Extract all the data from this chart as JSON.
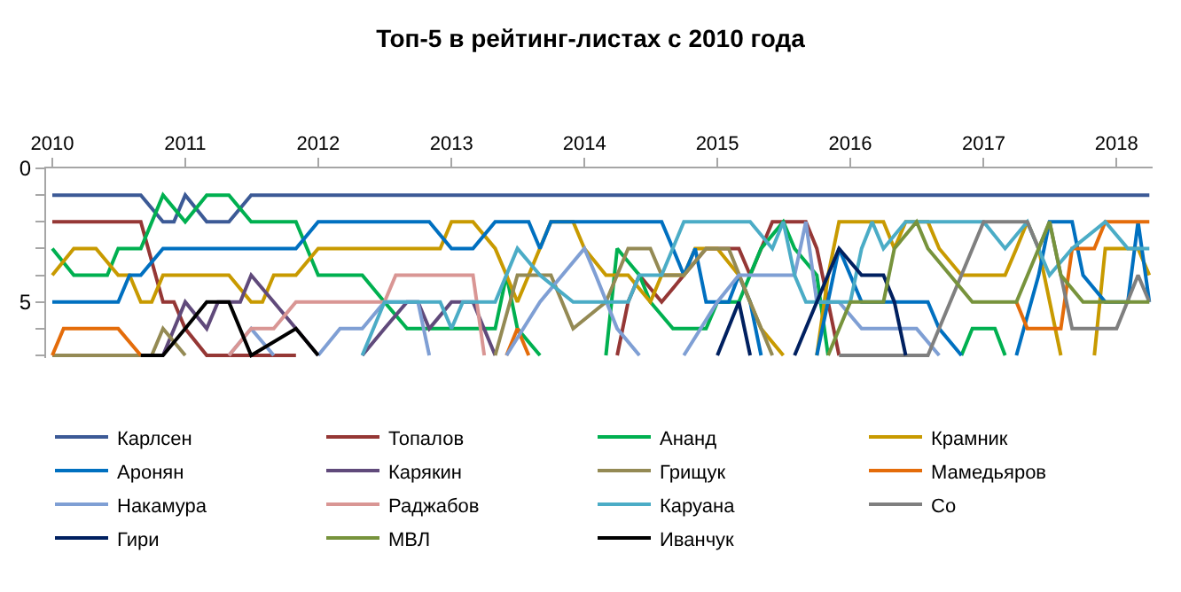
{
  "chart_data": {
    "type": "line",
    "title": "Топ-5 в рейтинг-листах с 2010 года",
    "xlim": [
      "2009-12-15",
      "2018-04-10"
    ],
    "xticks": [
      "2010",
      "2011",
      "2012",
      "2013",
      "2014",
      "2015",
      "2016",
      "2017",
      "2018"
    ],
    "ylim": [
      7.1,
      0
    ],
    "yticks": [
      0,
      {
        "value": 1,
        "label": null
      },
      {
        "value": 2,
        "label": null
      },
      {
        "value": 3,
        "label": null
      },
      {
        "value": 4,
        "label": null
      },
      5,
      {
        "value": 6,
        "label": null
      },
      {
        "value": 7,
        "label": null
      }
    ],
    "legend": "bottom",
    "line_style": "solid",
    "series": [
      {
        "name": "Карлсен",
        "color": "#3c5a96",
        "x": [
          "2010-01",
          "2010-09",
          "2010-11",
          "2010-12",
          "2011-01",
          "2011-03",
          "2011-05",
          "2011-07",
          "2018-04"
        ],
        "values": [
          1,
          1,
          2,
          2,
          1,
          2,
          2,
          1,
          1
        ]
      },
      {
        "name": "Топалов",
        "color": "#953735",
        "x": [
          "2010-01",
          "2010-09",
          "2010-11",
          "2010-12",
          "2011-01",
          "2011-03",
          "2011-11",
          "2012-01",
          "2014-04",
          "2014-05",
          "2014-06",
          "2014-08",
          "2014-10",
          "2014-12",
          "2015-03",
          "2015-04",
          "2015-06",
          "2015-09",
          "2015-10",
          "2015-11",
          "2015-12"
        ],
        "values": [
          2,
          2,
          5,
          5,
          6,
          7,
          7,
          null,
          7,
          5,
          4,
          5,
          4,
          3,
          3,
          4,
          2,
          2,
          3,
          5,
          7
        ]
      },
      {
        "name": "Ананд",
        "color": "#00b050",
        "x": [
          "2010-01",
          "2010-03",
          "2010-06",
          "2010-07",
          "2010-09",
          "2010-11",
          "2011-01",
          "2011-03",
          "2011-05",
          "2011-07",
          "2011-11",
          "2012-01",
          "2012-05",
          "2012-07",
          "2012-09",
          "2013-05",
          "2013-06",
          "2013-07",
          "2013-09",
          "2014-01",
          "2014-03",
          "2014-04",
          "2014-06",
          "2014-07",
          "2014-09",
          "2014-12",
          "2015-01",
          "2015-03",
          "2015-05",
          "2015-07",
          "2015-08",
          "2015-10",
          "2015-11",
          "2016-06",
          "2016-11",
          "2016-12",
          "2017-02",
          "2017-03"
        ],
        "values": [
          3,
          4,
          4,
          3,
          3,
          1,
          2,
          1,
          1,
          2,
          2,
          4,
          4,
          5,
          6,
          6,
          4,
          6,
          7,
          null,
          7,
          3,
          4,
          5,
          6,
          6,
          5,
          5,
          3,
          2,
          3,
          4,
          7,
          null,
          7,
          6,
          6,
          7
        ]
      },
      {
        "name": "Крамник",
        "color": "#c89a00",
        "x": [
          "2010-01",
          "2010-03",
          "2010-05",
          "2010-07",
          "2010-08",
          "2010-09",
          "2010-10",
          "2010-11",
          "2011-05",
          "2011-07",
          "2011-08",
          "2011-09",
          "2011-11",
          "2012-01",
          "2012-12",
          "2013-01",
          "2013-03",
          "2013-05",
          "2013-06",
          "2013-07",
          "2013-08",
          "2013-10",
          "2013-12",
          "2014-01",
          "2014-03",
          "2014-05",
          "2014-07",
          "2014-08",
          "2014-10",
          "2014-11",
          "2015-01",
          "2015-03",
          "2015-05",
          "2015-07",
          "2015-09",
          "2015-10",
          "2015-11",
          "2015-12",
          "2016-04",
          "2016-05",
          "2016-06",
          "2016-08",
          "2016-09",
          "2016-11",
          "2017-03",
          "2017-04",
          "2017-05",
          "2017-06",
          "2017-08",
          "2017-10",
          "2017-11",
          "2017-12",
          "2018-03",
          "2018-04"
        ],
        "values": [
          4,
          3,
          3,
          4,
          4,
          5,
          5,
          4,
          4,
          5,
          5,
          4,
          4,
          3,
          3,
          2,
          2,
          3,
          4,
          5,
          4,
          2,
          2,
          3,
          4,
          4,
          5,
          4,
          4,
          3,
          3,
          4,
          6,
          7,
          null,
          7,
          4,
          2,
          2,
          3,
          2,
          2,
          3,
          4,
          4,
          3,
          2,
          3,
          7,
          null,
          7,
          3,
          3,
          4
        ]
      },
      {
        "name": "Аронян",
        "color": "#0070c0",
        "x": [
          "2010-01",
          "2010-07",
          "2010-08",
          "2010-09",
          "2010-11",
          "2011-11",
          "2012-01",
          "2012-11",
          "2013-01",
          "2013-03",
          "2013-05",
          "2013-08",
          "2013-09",
          "2013-10",
          "2014-08",
          "2014-09",
          "2014-10",
          "2014-11",
          "2014-12",
          "2015-02",
          "2015-03",
          "2015-04",
          "2015-05",
          "2015-09",
          "2015-10",
          "2015-12",
          "2016-02",
          "2016-08",
          "2016-09",
          "2016-11",
          "2017-03",
          "2017-04",
          "2017-06",
          "2017-07",
          "2017-09",
          "2017-10",
          "2017-12",
          "2018-02",
          "2018-03",
          "2018-04"
        ],
        "values": [
          5,
          5,
          4,
          4,
          3,
          3,
          2,
          2,
          3,
          3,
          2,
          2,
          3,
          2,
          2,
          3,
          4,
          3,
          5,
          5,
          4,
          5,
          7,
          null,
          7,
          3,
          5,
          5,
          6,
          7,
          null,
          7,
          4,
          2,
          2,
          4,
          5,
          5,
          2,
          5
        ]
      },
      {
        "name": "Карякин",
        "color": "#604a7b",
        "x": [
          "2010-11",
          "2011-01",
          "2011-03",
          "2011-04",
          "2011-06",
          "2011-07",
          "2011-09",
          "2011-11",
          "2012-01",
          "2012-03",
          "2012-05",
          "2012-07",
          "2012-09",
          "2012-10",
          "2012-11",
          "2013-01",
          "2013-03",
          "2013-05"
        ],
        "values": [
          7,
          5,
          6,
          5,
          5,
          4,
          5,
          6,
          7,
          null,
          7,
          6,
          5,
          5,
          6,
          5,
          5,
          7
        ]
      },
      {
        "name": "Грищук",
        "color": "#948a54",
        "x": [
          "2010-01",
          "2010-02",
          "2010-10",
          "2010-11",
          "2011-01",
          "2012-01",
          "2013-05",
          "2013-07",
          "2013-10",
          "2013-12",
          "2014-03",
          "2014-05",
          "2014-07",
          "2014-08",
          "2014-10",
          "2014-12",
          "2015-02",
          "2015-04",
          "2015-06"
        ],
        "values": [
          7,
          7,
          7,
          6,
          7,
          null,
          7,
          4,
          4,
          6,
          5,
          3,
          3,
          4,
          4,
          3,
          3,
          5,
          7
        ]
      },
      {
        "name": "Мамедьяров",
        "color": "#e46c0a",
        "x": [
          "2010-01",
          "2010-02",
          "2010-07",
          "2010-09",
          "2011-01",
          "2013-06",
          "2013-07",
          "2013-08",
          "2014-01",
          "2017-04",
          "2017-05",
          "2017-08",
          "2017-09",
          "2017-11",
          "2017-12",
          "2018-04"
        ],
        "values": [
          7,
          6,
          6,
          7,
          null,
          7,
          6,
          7,
          null,
          5,
          6,
          6,
          3,
          3,
          2,
          2
        ]
      },
      {
        "name": "Накамура",
        "color": "#7f9fd4",
        "x": [
          "2011-05",
          "2011-07",
          "2011-09",
          "2011-11",
          "2012-01",
          "2012-03",
          "2012-05",
          "2012-07",
          "2012-10",
          "2012-11",
          "2013-01",
          "2013-06",
          "2013-09",
          "2013-11",
          "2014-01",
          "2014-02",
          "2014-04",
          "2014-06",
          "2014-08",
          "2014-10",
          "2015-01",
          "2015-03",
          "2015-08",
          "2015-09",
          "2015-10",
          "2015-12",
          "2016-02",
          "2016-07",
          "2016-09"
        ],
        "values": [
          7,
          6,
          7,
          null,
          7,
          6,
          6,
          5,
          5,
          7,
          null,
          7,
          5,
          4,
          3,
          4,
          6,
          7,
          null,
          7,
          5,
          4,
          4,
          2,
          5,
          5,
          6,
          6,
          7
        ]
      },
      {
        "name": "Раджабов",
        "color": "#d99694",
        "x": [
          "2011-05",
          "2011-07",
          "2011-09",
          "2011-11",
          "2012-07",
          "2012-08",
          "2013-03",
          "2013-04"
        ],
        "values": [
          7,
          6,
          6,
          5,
          5,
          4,
          4,
          7
        ]
      },
      {
        "name": "Каруана",
        "color": "#4bacc6",
        "x": [
          "2012-05",
          "2012-07",
          "2012-12",
          "2013-01",
          "2013-02",
          "2013-05",
          "2013-07",
          "2013-09",
          "2013-12",
          "2014-05",
          "2014-06",
          "2014-08",
          "2014-10",
          "2015-04",
          "2015-06",
          "2015-07",
          "2015-08",
          "2015-09",
          "2016-01",
          "2016-02",
          "2016-03",
          "2016-04",
          "2016-06",
          "2017-01",
          "2017-03",
          "2017-05",
          "2017-07",
          "2017-09",
          "2017-12",
          "2018-02",
          "2018-04"
        ],
        "values": [
          7,
          5,
          5,
          6,
          5,
          5,
          3,
          4,
          5,
          5,
          4,
          4,
          2,
          2,
          3,
          2,
          4,
          5,
          5,
          3,
          2,
          3,
          2,
          2,
          3,
          2,
          4,
          3,
          2,
          3,
          3
        ]
      },
      {
        "name": "Со",
        "color": "#7f7f7f",
        "x": [
          "2015-12",
          "2016-08",
          "2016-11",
          "2017-01",
          "2017-05",
          "2017-06",
          "2017-07",
          "2017-08",
          "2017-09",
          "2018-01",
          "2018-03",
          "2018-04"
        ],
        "values": [
          7,
          7,
          4,
          2,
          2,
          3,
          2,
          4,
          6,
          6,
          4,
          5
        ]
      },
      {
        "name": "Гири",
        "color": "#002060",
        "x": [
          "2015-01",
          "2015-03",
          "2015-04",
          "2015-06",
          "2015-08",
          "2015-10",
          "2015-12",
          "2016-02",
          "2016-04",
          "2016-05",
          "2016-06"
        ],
        "values": [
          7,
          5,
          7,
          null,
          7,
          5,
          3,
          4,
          4,
          5,
          7
        ]
      },
      {
        "name": "МВЛ",
        "color": "#77933c",
        "x": [
          "2015-11",
          "2016-01",
          "2016-04",
          "2016-05",
          "2016-07",
          "2016-08",
          "2016-10",
          "2016-12",
          "2017-04",
          "2017-06",
          "2017-07",
          "2017-08",
          "2017-10",
          "2018-04"
        ],
        "values": [
          7,
          5,
          5,
          3,
          2,
          3,
          4,
          5,
          5,
          3,
          2,
          4,
          5,
          5
        ]
      },
      {
        "name": "Иванчук",
        "color": "#000000",
        "x": [
          "2010-09",
          "2010-11",
          "2011-01",
          "2011-03",
          "2011-05",
          "2011-07",
          "2011-11",
          "2012-01"
        ],
        "values": [
          7,
          7,
          6,
          5,
          5,
          7,
          6,
          7
        ]
      }
    ]
  }
}
